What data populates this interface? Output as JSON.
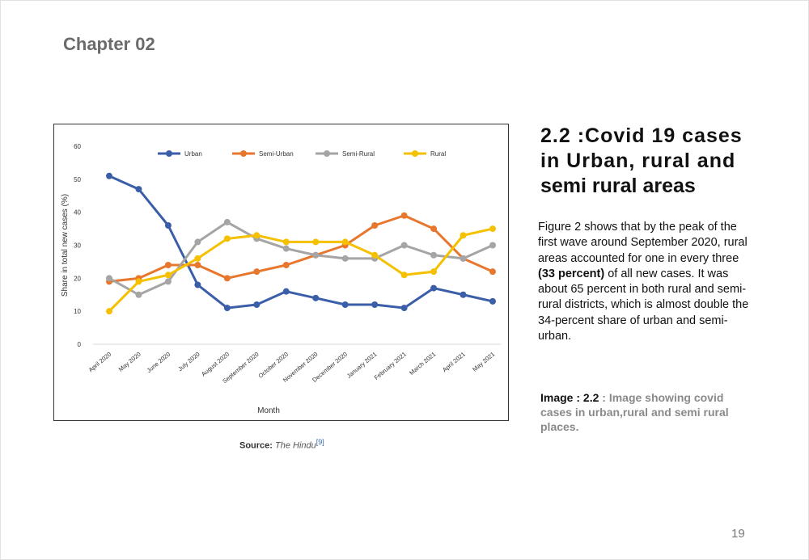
{
  "chapter": "Chapter 02",
  "heading": {
    "line1": "2.2 :Covid 19 cases",
    "line2": "in Urban,  rural and",
    "line3": "semi rural areas"
  },
  "body": {
    "before_bold": "Figure 2 shows that by the peak of the first wave around September 2020, rural areas accounted for one in every three ",
    "bold": "(33 percent)",
    "after_bold": " of all new cases. It was about 65 percent in both rural and semi-rural districts, which is almost double the 34-percent share of urban and semi-urban."
  },
  "caption": {
    "label": "Image : 2.2",
    "text": " : Image showing covid cases in urban,rural and semi rural places."
  },
  "source": {
    "label": "Source:",
    "name": "The Hindu",
    "ref": "[9]"
  },
  "page_number": "19",
  "chart_data": {
    "type": "line",
    "xlabel": "Month",
    "ylabel": "Share in total new cases (%)",
    "ylim": [
      0,
      60
    ],
    "yticks": [
      "0",
      "10",
      "20",
      "30",
      "40",
      "50",
      "60"
    ],
    "grid": false,
    "legend_position": "top",
    "categories": [
      "April 2020",
      "May 2020",
      "June 2020",
      "July 2020",
      "August 2020",
      "September 2020",
      "October 2020",
      "November 2020",
      "December 2020",
      "January 2021",
      "February 2021",
      "March 2021",
      "April 2021",
      "May 2021"
    ],
    "series": [
      {
        "name": "Urban",
        "color": "#3a5ea8",
        "values": [
          51,
          47,
          36,
          18,
          11,
          12,
          16,
          14,
          12,
          12,
          11,
          17,
          15,
          13
        ]
      },
      {
        "name": "Semi-Urban",
        "color": "#e8772e",
        "values": [
          19,
          20,
          24,
          24,
          20,
          22,
          24,
          27,
          30,
          36,
          39,
          35,
          26,
          22
        ]
      },
      {
        "name": "Semi-Rural",
        "color": "#a5a5a5",
        "values": [
          20,
          15,
          19,
          31,
          37,
          32,
          29,
          27,
          26,
          26,
          30,
          27,
          26,
          30
        ]
      },
      {
        "name": "Rural",
        "color": "#f5c000",
        "values": [
          10,
          19,
          21,
          26,
          32,
          33,
          31,
          31,
          31,
          27,
          21,
          22,
          33,
          35
        ]
      }
    ]
  }
}
